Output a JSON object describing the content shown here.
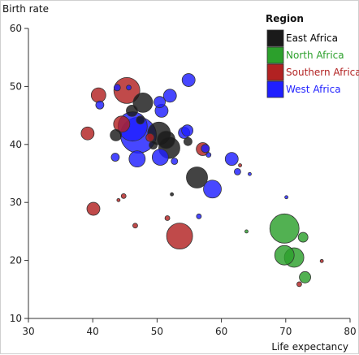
{
  "chart_data": {
    "type": "scatter",
    "subtype": "bubble",
    "xlabel": "Life expectancy",
    "ylabel": "Birth rate",
    "xlim": [
      30,
      80
    ],
    "ylim": [
      10,
      60
    ],
    "x_ticks": [
      30,
      40,
      50,
      60,
      70,
      80
    ],
    "y_ticks": [
      10,
      20,
      30,
      40,
      50,
      60
    ],
    "grid": false,
    "legend": {
      "title": "Region",
      "placement": "top-right"
    },
    "series": [
      {
        "name": "East Africa",
        "color": "#1a1a1a",
        "label_color": "#000000",
        "points": [
          {
            "x": 47.8,
            "y": 47.2,
            "size": 12
          },
          {
            "x": 46.1,
            "y": 45.8,
            "size": 7
          },
          {
            "x": 47.4,
            "y": 44.2,
            "size": 5
          },
          {
            "x": 43.6,
            "y": 41.6,
            "size": 7
          },
          {
            "x": 50.3,
            "y": 41.9,
            "size": 14
          },
          {
            "x": 51.4,
            "y": 40.8,
            "size": 11
          },
          {
            "x": 51.9,
            "y": 39.4,
            "size": 13
          },
          {
            "x": 49.4,
            "y": 39.9,
            "size": 5
          },
          {
            "x": 54.8,
            "y": 40.5,
            "size": 5
          },
          {
            "x": 56.2,
            "y": 34.3,
            "size": 13
          },
          {
            "x": 52.3,
            "y": 31.4,
            "size": 2
          }
        ]
      },
      {
        "name": "North Africa",
        "color": "#2ca02c",
        "label_color": "#2ca02c",
        "points": [
          {
            "x": 69.8,
            "y": 25.5,
            "size": 18
          },
          {
            "x": 71.3,
            "y": 20.5,
            "size": 12
          },
          {
            "x": 69.8,
            "y": 20.9,
            "size": 12
          },
          {
            "x": 72.7,
            "y": 24.0,
            "size": 6
          },
          {
            "x": 73.0,
            "y": 17.1,
            "size": 7
          },
          {
            "x": 63.9,
            "y": 25.0,
            "size": 2
          }
        ]
      },
      {
        "name": "Southern Africa",
        "color": "#b22222",
        "label_color": "#b22222",
        "points": [
          {
            "x": 45.3,
            "y": 49.3,
            "size": 16
          },
          {
            "x": 40.9,
            "y": 48.5,
            "size": 9
          },
          {
            "x": 44.5,
            "y": 43.5,
            "size": 10
          },
          {
            "x": 39.2,
            "y": 41.9,
            "size": 8
          },
          {
            "x": 48.9,
            "y": 41.2,
            "size": 5
          },
          {
            "x": 57.1,
            "y": 39.2,
            "size": 8
          },
          {
            "x": 40.1,
            "y": 28.9,
            "size": 8
          },
          {
            "x": 44.8,
            "y": 31.1,
            "size": 3
          },
          {
            "x": 44.0,
            "y": 30.4,
            "size": 2
          },
          {
            "x": 46.6,
            "y": 26.0,
            "size": 3
          },
          {
            "x": 51.6,
            "y": 27.3,
            "size": 3
          },
          {
            "x": 53.5,
            "y": 24.2,
            "size": 16
          },
          {
            "x": 62.9,
            "y": 36.4,
            "size": 2
          },
          {
            "x": 75.6,
            "y": 19.9,
            "size": 2
          },
          {
            "x": 72.1,
            "y": 15.9,
            "size": 3
          }
        ]
      },
      {
        "name": "West Africa",
        "color": "#1f1fff",
        "label_color": "#1f1fff",
        "points": [
          {
            "x": 43.8,
            "y": 49.8,
            "size": 4
          },
          {
            "x": 45.6,
            "y": 49.8,
            "size": 3
          },
          {
            "x": 54.9,
            "y": 51.1,
            "size": 8
          },
          {
            "x": 52.0,
            "y": 48.4,
            "size": 8
          },
          {
            "x": 50.4,
            "y": 47.3,
            "size": 7
          },
          {
            "x": 50.7,
            "y": 45.8,
            "size": 8
          },
          {
            "x": 41.1,
            "y": 46.8,
            "size": 5
          },
          {
            "x": 46.2,
            "y": 43.1,
            "size": 18
          },
          {
            "x": 47.1,
            "y": 41.6,
            "size": 22
          },
          {
            "x": 54.2,
            "y": 42.0,
            "size": 7
          },
          {
            "x": 54.7,
            "y": 42.4,
            "size": 7
          },
          {
            "x": 57.5,
            "y": 39.3,
            "size": 5
          },
          {
            "x": 58.0,
            "y": 38.2,
            "size": 3
          },
          {
            "x": 46.9,
            "y": 37.5,
            "size": 10
          },
          {
            "x": 50.5,
            "y": 37.8,
            "size": 10
          },
          {
            "x": 43.5,
            "y": 37.8,
            "size": 5
          },
          {
            "x": 52.7,
            "y": 37.1,
            "size": 4
          },
          {
            "x": 61.6,
            "y": 37.5,
            "size": 8
          },
          {
            "x": 62.5,
            "y": 35.3,
            "size": 4
          },
          {
            "x": 64.4,
            "y": 34.9,
            "size": 2
          },
          {
            "x": 58.6,
            "y": 32.3,
            "size": 11
          },
          {
            "x": 56.5,
            "y": 27.6,
            "size": 3
          },
          {
            "x": 70.1,
            "y": 30.9,
            "size": 2
          }
        ]
      }
    ]
  }
}
